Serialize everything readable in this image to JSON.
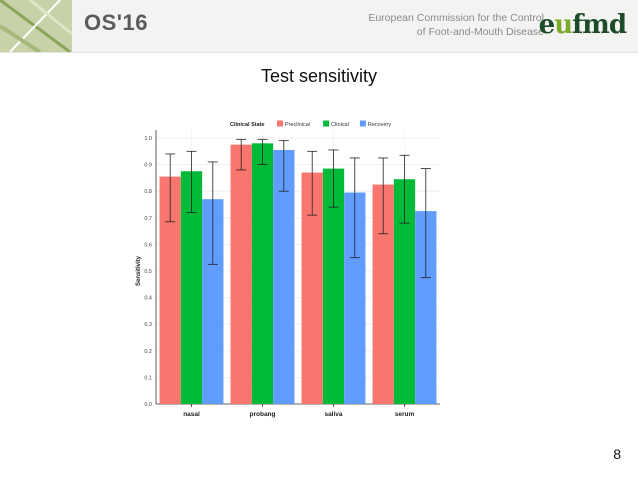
{
  "header": {
    "brand": "OS'16",
    "org_line1": "European Commission for the Control",
    "org_line2": "of Foot-and-Mouth Disease",
    "logo_prefix": "e",
    "logo_o": "u",
    "logo_suffix": "fmd"
  },
  "slide": {
    "title": "Test sensitivity",
    "page_number": "8"
  },
  "chart_data": {
    "type": "bar",
    "categories": [
      "nasal",
      "probang",
      "saliva",
      "serum"
    ],
    "legend_title": "Clinical State",
    "legend_position": "top",
    "ylabel": "Sensitivity",
    "xlabel": "",
    "ylim": [
      0,
      1.0
    ],
    "yticks": [
      "0.0",
      "0.1",
      "0.2",
      "0.3",
      "0.4",
      "0.5",
      "0.6",
      "0.7",
      "0.8",
      "0.9",
      "1.0"
    ],
    "grid": true,
    "series": [
      {
        "name": "Preclinical",
        "color": "#f8766d",
        "values": [
          0.855,
          0.975,
          0.87,
          0.825
        ],
        "error_low": [
          0.685,
          0.88,
          0.71,
          0.64
        ],
        "error_high": [
          0.94,
          0.995,
          0.95,
          0.925
        ]
      },
      {
        "name": "Clinical",
        "color": "#00ba38",
        "values": [
          0.875,
          0.98,
          0.885,
          0.845
        ],
        "error_low": [
          0.72,
          0.9,
          0.74,
          0.68
        ],
        "error_high": [
          0.95,
          0.995,
          0.955,
          0.935
        ]
      },
      {
        "name": "Recovery",
        "color": "#619cff",
        "values": [
          0.77,
          0.955,
          0.795,
          0.725
        ],
        "error_low": [
          0.525,
          0.8,
          0.55,
          0.475
        ],
        "error_high": [
          0.91,
          0.99,
          0.925,
          0.885
        ]
      }
    ]
  }
}
